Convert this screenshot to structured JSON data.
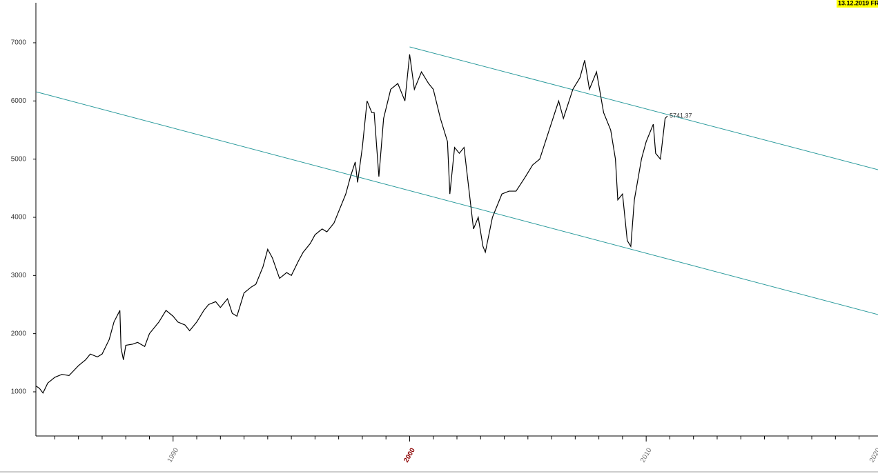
{
  "chart_data": {
    "type": "line",
    "date_badge": "13.12.2019 FR",
    "xlim": [
      1984.2,
      2019.8
    ],
    "ylim": [
      241,
      7735
    ],
    "xticks": [
      1990,
      2000,
      2010,
      2020
    ],
    "highlighted_xtick": 2000,
    "xminorticks": [
      1985,
      1986,
      1987,
      1988,
      1989,
      1991,
      1992,
      1993,
      1994,
      1995,
      1996,
      1997,
      1998,
      1999,
      2001,
      2002,
      2003,
      2004,
      2005,
      2006,
      2007,
      2008,
      2009,
      2011,
      2012,
      2013,
      2014,
      2015,
      2016,
      2017,
      2018,
      2019
    ],
    "yticks": [
      1000,
      2000,
      3000,
      4000,
      5000,
      6000,
      7000
    ],
    "series": [
      {
        "color": "#000000",
        "x": [
          1984.2,
          1984.35,
          1984.5,
          1984.7,
          1985.0,
          1985.3,
          1985.6,
          1986.0,
          1986.3,
          1986.5,
          1986.8,
          1987.0,
          1987.3,
          1987.5,
          1987.75,
          1987.8,
          1987.9,
          1988.0,
          1988.3,
          1988.5,
          1988.8,
          1989.0,
          1989.4,
          1989.7,
          1990.0,
          1990.2,
          1990.5,
          1990.7,
          1991.0,
          1991.3,
          1991.5,
          1991.8,
          1992.0,
          1992.3,
          1992.5,
          1992.7,
          1993.0,
          1993.3,
          1993.5,
          1993.8,
          1994.0,
          1994.2,
          1994.5,
          1994.8,
          1995.0,
          1995.3,
          1995.5,
          1995.8,
          1996.0,
          1996.3,
          1996.5,
          1996.8,
          1997.0,
          1997.3,
          1997.5,
          1997.7,
          1997.8,
          1998.0,
          1998.2,
          1998.4,
          1998.5,
          1998.7,
          1998.9,
          1999.2,
          1999.5,
          1999.8,
          2000.0,
          2000.2,
          2000.5,
          2000.8,
          2001.0,
          2001.3,
          2001.6,
          2001.7,
          2001.9,
          2002.1,
          2002.3,
          2002.5,
          2002.7,
          2002.9,
          2003.1,
          2003.2,
          2003.5,
          2003.9,
          2004.2,
          2004.5,
          2004.9,
          2005.2,
          2005.5,
          2005.9,
          2006.3,
          2006.5,
          2006.9,
          2007.2,
          2007.4,
          2007.6,
          2007.9,
          2008.2,
          2008.5,
          2008.7,
          2008.8,
          2009.0,
          2009.2,
          2009.35,
          2009.5,
          2009.8,
          2010.0,
          2010.3,
          2010.4,
          2010.6,
          2010.8,
          2010.9
        ],
        "values": [
          1100,
          1060,
          980,
          1150,
          1250,
          1300,
          1280,
          1450,
          1550,
          1650,
          1600,
          1650,
          1900,
          2200,
          2400,
          1750,
          1550,
          1800,
          1820,
          1850,
          1780,
          2000,
          2200,
          2400,
          2300,
          2200,
          2150,
          2050,
          2200,
          2400,
          2500,
          2550,
          2450,
          2600,
          2350,
          2300,
          2700,
          2800,
          2850,
          3150,
          3450,
          3300,
          2950,
          3050,
          3000,
          3250,
          3400,
          3550,
          3700,
          3800,
          3750,
          3900,
          4100,
          4400,
          4700,
          4950,
          4600,
          5200,
          6000,
          5800,
          5800,
          4700,
          5700,
          6200,
          6300,
          6000,
          6800,
          6200,
          6500,
          6300,
          6200,
          5700,
          5300,
          4400,
          5200,
          5100,
          5200,
          4500,
          3800,
          4000,
          3500,
          3400,
          4000,
          4400,
          4450,
          4450,
          4700,
          4900,
          5000,
          5500,
          6000,
          5700,
          6200,
          6400,
          6700,
          6200,
          6500,
          5800,
          5500,
          5000,
          4300,
          4400,
          3600,
          3500,
          4300,
          5000,
          5300,
          5600,
          5100,
          5000,
          5700,
          5741.37
        ]
      }
    ],
    "annotations": [
      {
        "x": 2010.9,
        "y": 5741.37,
        "text": "5741.37"
      }
    ],
    "trend_lines": [
      {
        "color": "#2a9a9c",
        "x": [
          2000.0,
          2019.8
        ],
        "values": [
          6929,
          4818
        ]
      },
      {
        "color": "#2a9a9c",
        "x": [
          1984.2,
          2019.8
        ],
        "values": [
          6158,
          2328
        ]
      }
    ]
  }
}
